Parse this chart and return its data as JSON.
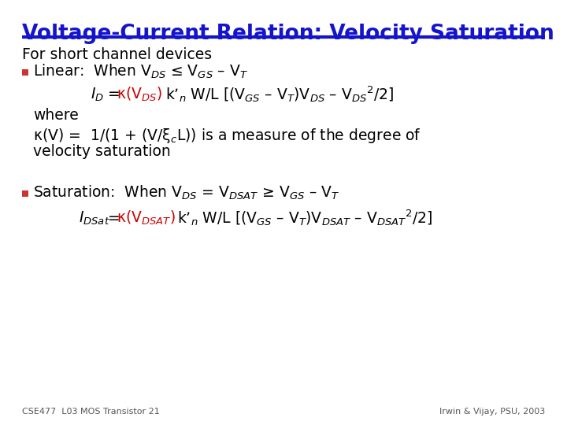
{
  "title": "Voltage-Current Relation: Velocity Saturation",
  "title_color": "#1414CC",
  "title_underline_color": "#1414CC",
  "background_color": "#FFFFFF",
  "body_text_color": "#000000",
  "red_color": "#CC0000",
  "footer_left": "CSE477  L03 MOS Transistor 21",
  "footer_right": "Irwin & Vijay, PSU, 2003",
  "em_dash": "–",
  "leq": "≤",
  "geq": "≥",
  "kappa": "κ",
  "xi": "ξ"
}
